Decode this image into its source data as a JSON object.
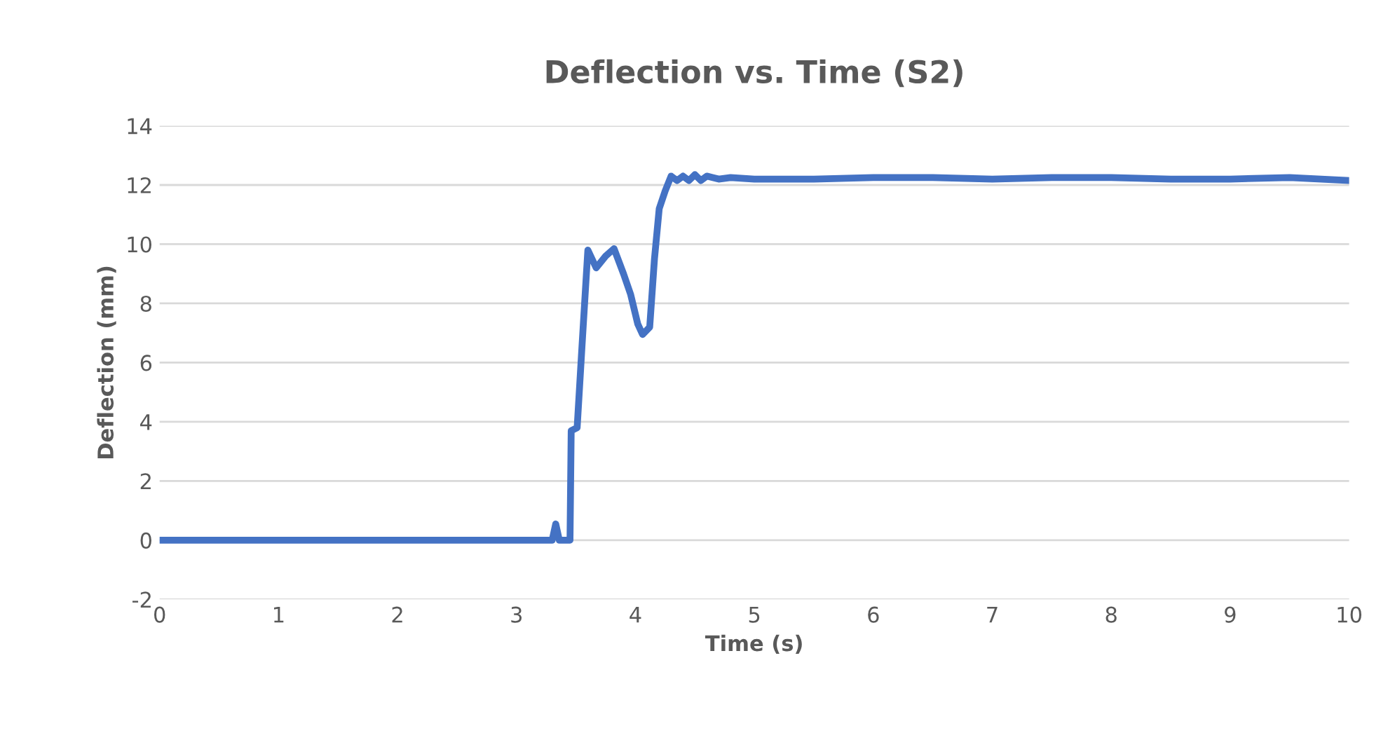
{
  "chart_data": {
    "type": "line",
    "title": "Deflection vs. Time (S2)",
    "xlabel": "Time (s)",
    "ylabel": "Deflection (mm)",
    "xlim": [
      0,
      10
    ],
    "xticks": [
      0,
      1,
      2,
      3,
      4,
      5,
      6,
      7,
      8,
      9,
      10
    ],
    "ylim": [
      -2,
      14
    ],
    "yticks": [
      -2,
      0,
      2,
      4,
      6,
      8,
      10,
      12,
      14
    ],
    "grid": "y",
    "marker": "none",
    "line_style": "solid",
    "series": [
      {
        "color": "#4472c4",
        "x": [
          0,
          1,
          2,
          3,
          3.3,
          3.33,
          3.36,
          3.45,
          3.46,
          3.51,
          3.55,
          3.6,
          3.67,
          3.75,
          3.82,
          3.9,
          3.96,
          4.02,
          4.06,
          4.12,
          4.16,
          4.2,
          4.25,
          4.3,
          4.35,
          4.4,
          4.45,
          4.5,
          4.55,
          4.6,
          4.7,
          4.8,
          5,
          5.5,
          6,
          6.5,
          7,
          7.5,
          8,
          8.5,
          9,
          9.5,
          10
        ],
        "values": [
          0,
          0,
          0,
          0,
          0,
          0.55,
          0,
          0,
          3.7,
          3.8,
          6.5,
          9.8,
          9.2,
          9.6,
          9.85,
          9.0,
          8.3,
          7.3,
          6.95,
          7.2,
          9.5,
          11.2,
          11.8,
          12.3,
          12.15,
          12.3,
          12.15,
          12.35,
          12.15,
          12.3,
          12.2,
          12.25,
          12.2,
          12.2,
          12.25,
          12.25,
          12.2,
          12.25,
          12.25,
          12.2,
          12.2,
          12.25,
          12.15
        ]
      }
    ]
  }
}
